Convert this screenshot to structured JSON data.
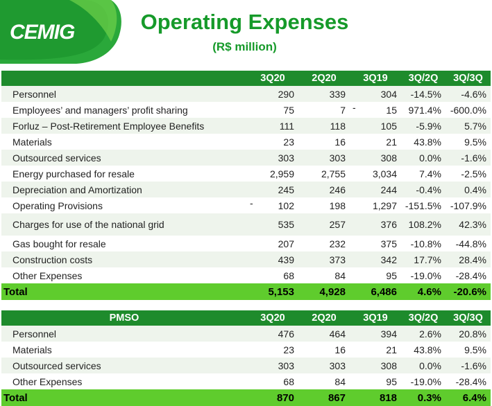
{
  "header": {
    "logo_text": "CEMIG",
    "title": "Operating Expenses",
    "subtitle": "(R$ million)",
    "brand_color": "#1e8b2c",
    "total_color": "#5fcc2d"
  },
  "opex": {
    "columns": [
      "",
      "3Q20",
      "2Q20",
      "3Q19",
      "3Q/2Q",
      "3Q/3Q"
    ],
    "rows": [
      {
        "label": "Personnel",
        "v1": "290",
        "v2": "339",
        "v3": "304",
        "p1": "-14.5%",
        "p2": "-4.6%",
        "neg": ""
      },
      {
        "label": "Employees’ and managers’ profit sharing",
        "v1": "75",
        "v2": "7",
        "v3": "15",
        "p1": "971.4%",
        "p2": "-600.0%",
        "neg": "-"
      },
      {
        "label": "Forluz – Post-Retirement Employee Benefits",
        "v1": "111",
        "v2": "118",
        "v3": "105",
        "p1": "-5.9%",
        "p2": "5.7%",
        "neg": ""
      },
      {
        "label": "Materials",
        "v1": "23",
        "v2": "16",
        "v3": "21",
        "p1": "43.8%",
        "p2": "9.5%",
        "neg": ""
      },
      {
        "label": "Outsourced services",
        "v1": "303",
        "v2": "303",
        "v3": "308",
        "p1": "0.0%",
        "p2": "-1.6%",
        "neg": ""
      },
      {
        "label": "Energy purchased for resale",
        "v1": "2,959",
        "v2": "2,755",
        "v3": "3,034",
        "p1": "7.4%",
        "p2": "-2.5%",
        "neg": ""
      },
      {
        "label": "Depreciation and Amortization",
        "v1": "245",
        "v2": "246",
        "v3": "244",
        "p1": "-0.4%",
        "p2": "0.4%",
        "neg": ""
      },
      {
        "label": "Operating Provisions",
        "v1": "102",
        "v2": "198",
        "v3": "1,297",
        "p1": "-151.5%",
        "p2": "-107.9%",
        "neg": "-"
      },
      {
        "label": "Charges for use of the national grid",
        "v1": "535",
        "v2": "257",
        "v3": "376",
        "p1": "108.2%",
        "p2": "42.3%",
        "neg": ""
      },
      {
        "label": "Gas bought for resale",
        "v1": "207",
        "v2": "232",
        "v3": "375",
        "p1": "-10.8%",
        "p2": "-44.8%",
        "neg": ""
      },
      {
        "label": "Construction costs",
        "v1": "439",
        "v2": "373",
        "v3": "342",
        "p1": "17.7%",
        "p2": "28.4%",
        "neg": ""
      },
      {
        "label": "Other Expenses",
        "v1": "68",
        "v2": "84",
        "v3": "95",
        "p1": "-19.0%",
        "p2": "-28.4%",
        "neg": ""
      }
    ],
    "total": {
      "label": "Total",
      "v1": "5,153",
      "v2": "4,928",
      "v3": "6,486",
      "p1": "4.6%",
      "p2": "-20.6%"
    }
  },
  "pmso": {
    "columns": [
      "PMSO",
      "3Q20",
      "2Q20",
      "3Q19",
      "3Q/2Q",
      "3Q/3Q"
    ],
    "rows": [
      {
        "label": "Personnel",
        "v1": "476",
        "v2": "464",
        "v3": "394",
        "p1": "2.6%",
        "p2": "20.8%"
      },
      {
        "label": "Materials",
        "v1": "23",
        "v2": "16",
        "v3": "21",
        "p1": "43.8%",
        "p2": "9.5%"
      },
      {
        "label": "Outsourced services",
        "v1": "303",
        "v2": "303",
        "v3": "308",
        "p1": "0.0%",
        "p2": "-1.6%"
      },
      {
        "label": "Other Expenses",
        "v1": "68",
        "v2": "84",
        "v3": "95",
        "p1": "-19.0%",
        "p2": "-28.4%"
      }
    ],
    "total": {
      "label": "Total",
      "v1": "870",
      "v2": "867",
      "v3": "818",
      "p1": "0.3%",
      "p2": "6.4%"
    }
  }
}
